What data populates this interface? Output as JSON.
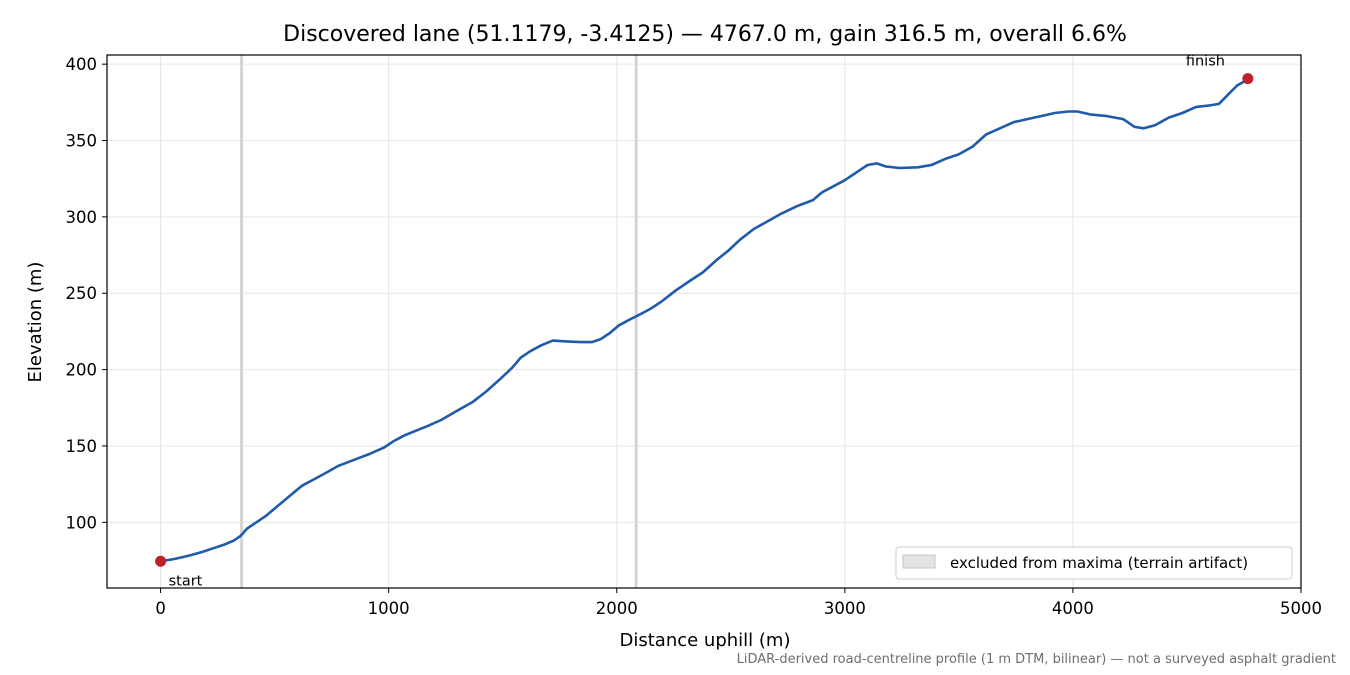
{
  "chart_data": {
    "type": "line",
    "title": "Discovered lane (51.1179, -3.4125) — 4767.0 m, gain 316.5 m, overall 6.6%",
    "xlabel": "Distance uphill (m)",
    "ylabel": "Elevation (m)",
    "xlim": [
      -235,
      5000
    ],
    "ylim": [
      57,
      406
    ],
    "xticks": [
      0,
      1000,
      2000,
      3000,
      4000,
      5000
    ],
    "yticks": [
      100,
      150,
      200,
      250,
      300,
      350,
      400
    ],
    "grid": true,
    "legend": {
      "placement": "lower right",
      "entries": [
        "excluded from maxima (terrain artifact)"
      ]
    },
    "excluded_markers_x": [
      355,
      2085
    ],
    "series": [
      {
        "color": "#1f5aab",
        "points": [
          [
            0,
            74.5
          ],
          [
            60,
            76
          ],
          [
            120,
            78
          ],
          [
            180,
            80.5
          ],
          [
            230,
            83
          ],
          [
            280,
            85.5
          ],
          [
            320,
            88
          ],
          [
            350,
            91
          ],
          [
            380,
            96
          ],
          [
            420,
            100
          ],
          [
            460,
            104
          ],
          [
            500,
            109
          ],
          [
            540,
            114
          ],
          [
            580,
            119
          ],
          [
            620,
            124
          ],
          [
            670,
            128
          ],
          [
            720,
            132
          ],
          [
            780,
            137
          ],
          [
            850,
            141
          ],
          [
            920,
            145
          ],
          [
            980,
            149
          ],
          [
            1020,
            153
          ],
          [
            1070,
            157
          ],
          [
            1120,
            160
          ],
          [
            1170,
            163
          ],
          [
            1230,
            167
          ],
          [
            1300,
            173
          ],
          [
            1370,
            179
          ],
          [
            1430,
            186
          ],
          [
            1490,
            194
          ],
          [
            1540,
            201
          ],
          [
            1580,
            208
          ],
          [
            1620,
            212
          ],
          [
            1670,
            216
          ],
          [
            1720,
            219
          ],
          [
            1780,
            218.5
          ],
          [
            1840,
            218
          ],
          [
            1890,
            218
          ],
          [
            1930,
            220
          ],
          [
            1970,
            224
          ],
          [
            2010,
            229
          ],
          [
            2060,
            233
          ],
          [
            2100,
            236
          ],
          [
            2150,
            240
          ],
          [
            2200,
            245
          ],
          [
            2260,
            252
          ],
          [
            2320,
            258
          ],
          [
            2380,
            264
          ],
          [
            2440,
            272
          ],
          [
            2490,
            278
          ],
          [
            2540,
            285
          ],
          [
            2600,
            292
          ],
          [
            2660,
            297
          ],
          [
            2720,
            302
          ],
          [
            2790,
            307
          ],
          [
            2860,
            311
          ],
          [
            2900,
            316
          ],
          [
            2950,
            320
          ],
          [
            3000,
            324
          ],
          [
            3050,
            329
          ],
          [
            3100,
            334
          ],
          [
            3140,
            335
          ],
          [
            3180,
            333
          ],
          [
            3240,
            332
          ],
          [
            3320,
            332.5
          ],
          [
            3380,
            334
          ],
          [
            3440,
            338
          ],
          [
            3500,
            341
          ],
          [
            3560,
            346
          ],
          [
            3620,
            354
          ],
          [
            3680,
            358
          ],
          [
            3740,
            362
          ],
          [
            3800,
            364
          ],
          [
            3860,
            366
          ],
          [
            3920,
            368
          ],
          [
            3980,
            369
          ],
          [
            4020,
            369
          ],
          [
            4080,
            367
          ],
          [
            4150,
            366
          ],
          [
            4220,
            364
          ],
          [
            4270,
            359
          ],
          [
            4310,
            358
          ],
          [
            4360,
            360
          ],
          [
            4420,
            365
          ],
          [
            4480,
            368
          ],
          [
            4540,
            372
          ],
          [
            4600,
            373
          ],
          [
            4640,
            374
          ],
          [
            4680,
            380
          ],
          [
            4720,
            386
          ],
          [
            4767,
            390
          ]
        ]
      }
    ],
    "annotations": [
      {
        "text": "start",
        "x": 0,
        "y": 74.5,
        "marker_color": "#c0202a"
      },
      {
        "text": "finish",
        "x": 4767,
        "y": 390.5,
        "marker_color": "#c0202a"
      }
    ]
  },
  "footnote": "LiDAR-derived road-centreline profile (1 m DTM, bilinear) — not a surveyed asphalt gradient"
}
